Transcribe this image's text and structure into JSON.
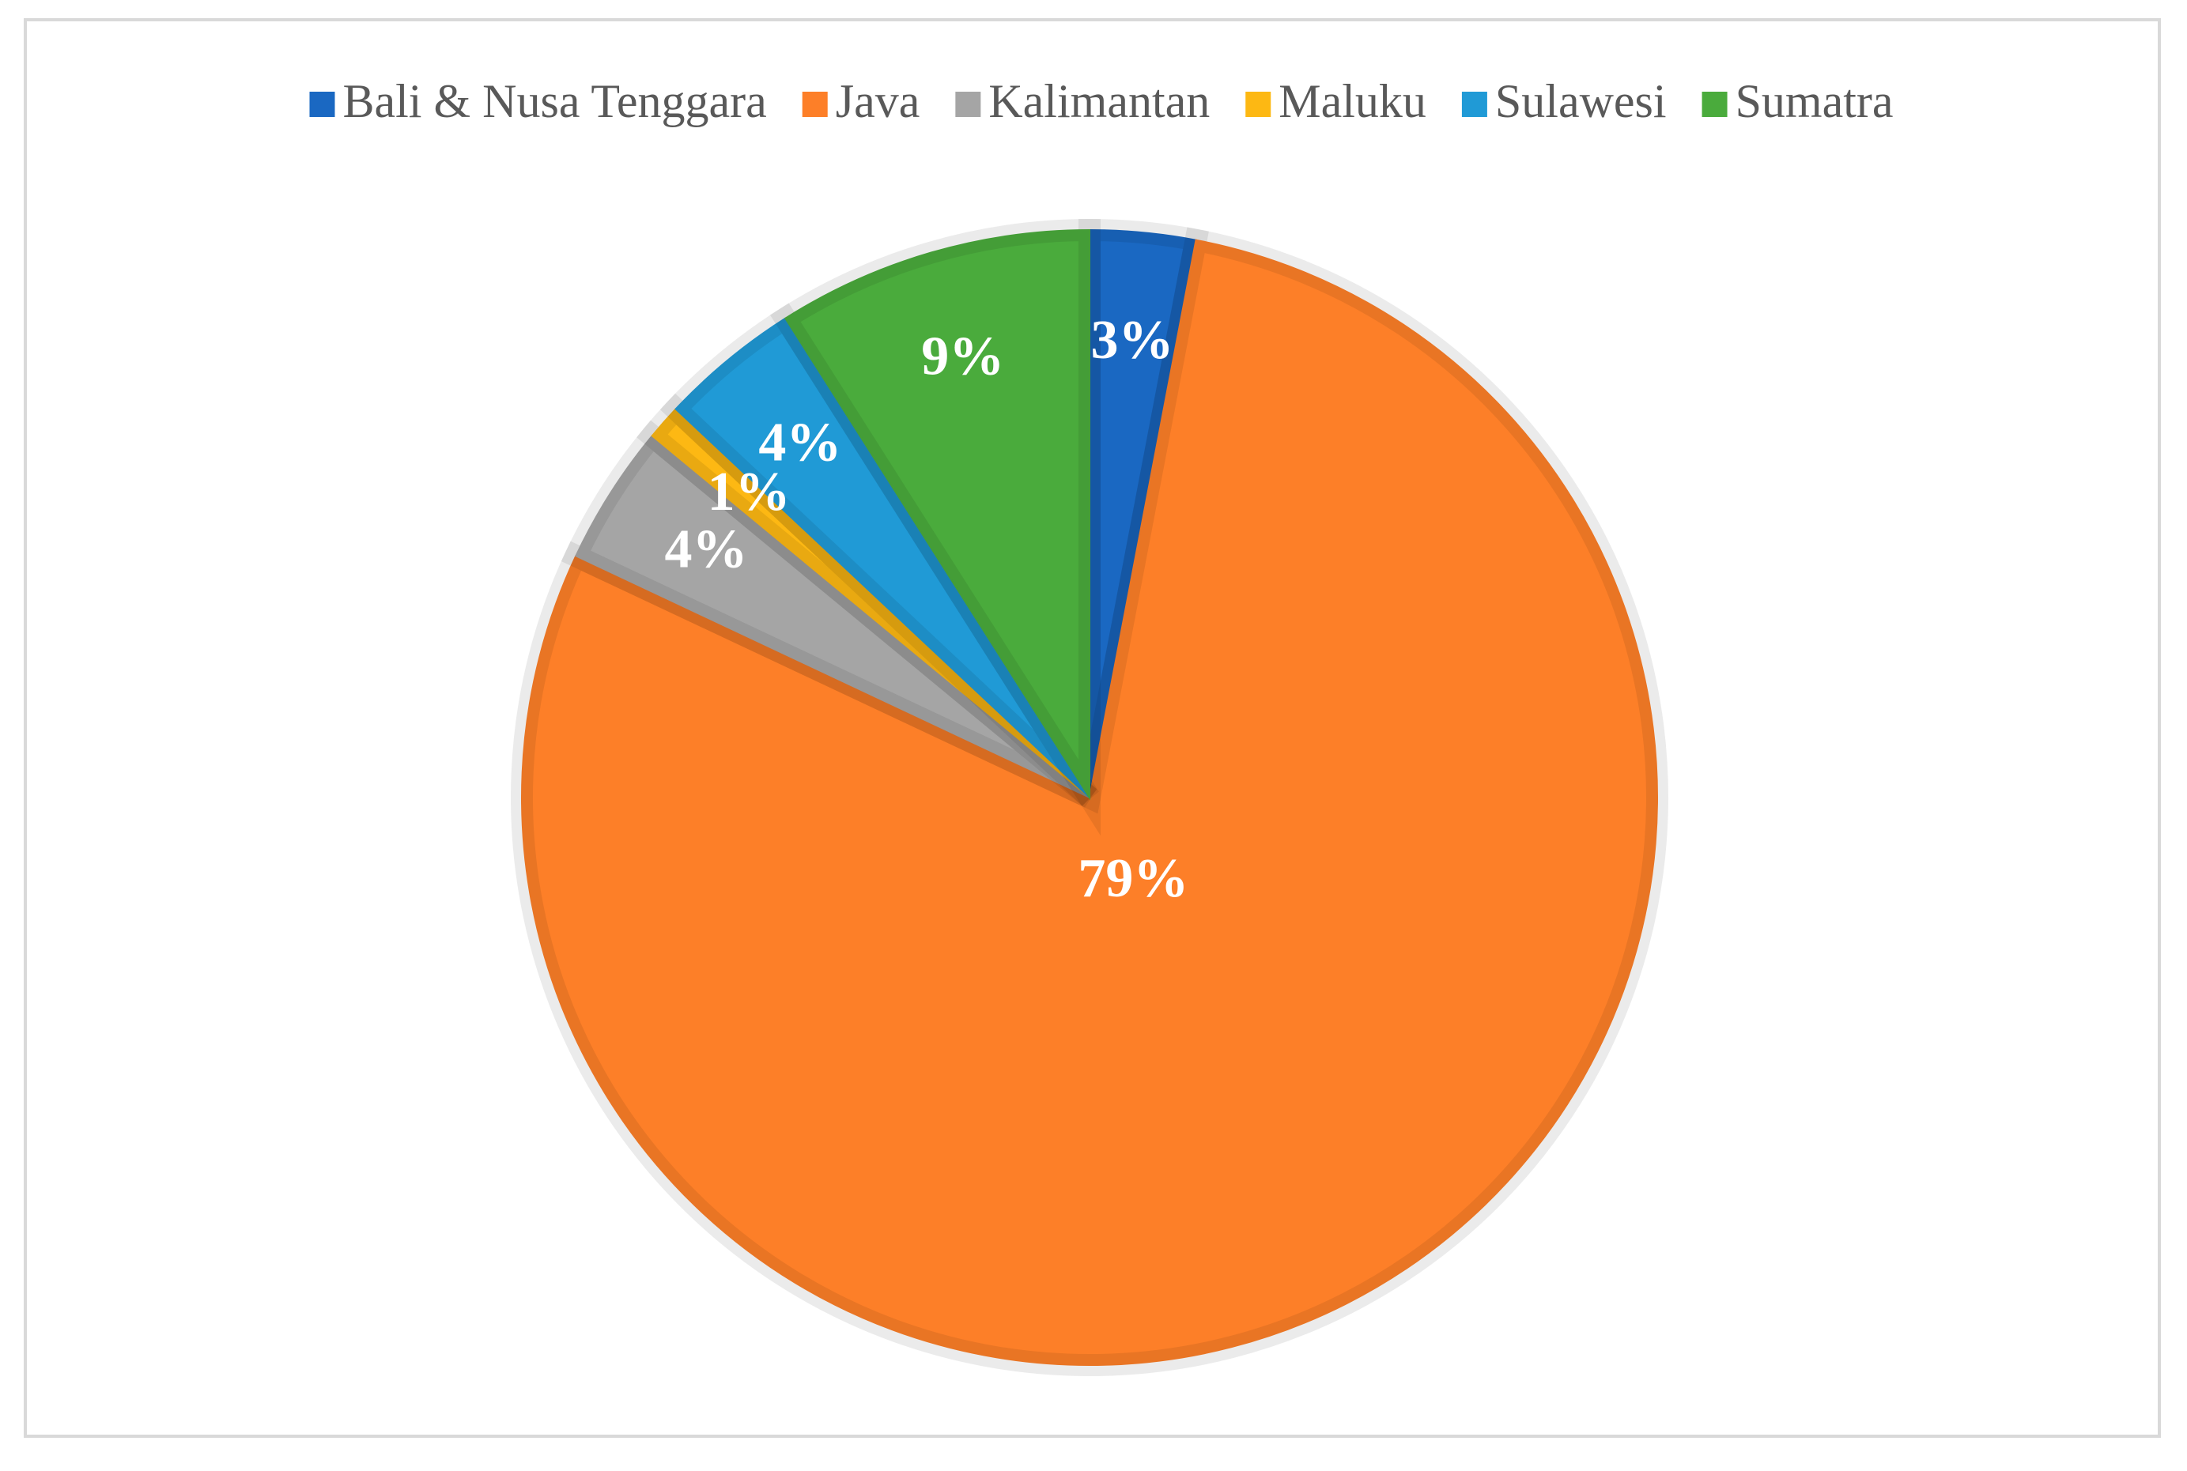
{
  "chart_data": {
    "type": "pie",
    "categories": [
      "Bali & Nusa Tenggara",
      "Java",
      "Kalimantan",
      "Maluku",
      "Sulawesi",
      "Sumatra"
    ],
    "values": [
      3,
      79,
      4,
      1,
      4,
      9
    ],
    "value_labels": [
      "3%",
      "79%",
      "4%",
      "1%",
      "4%",
      "9%"
    ],
    "colors": [
      "#1a68c2",
      "#fd7f28",
      "#a5a5a5",
      "#fdb813",
      "#209ad6",
      "#4aab3c"
    ],
    "legend": "top"
  }
}
